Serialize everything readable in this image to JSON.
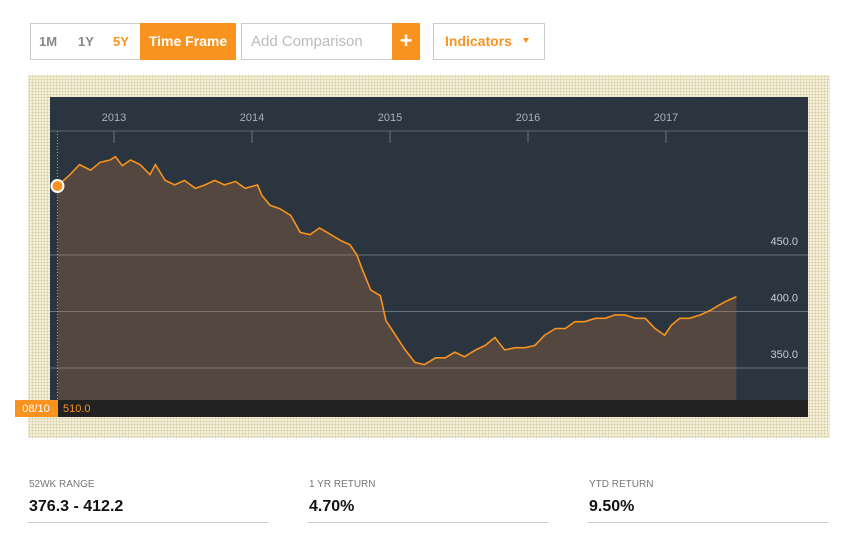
{
  "toolbar": {
    "ranges": [
      "1M",
      "1Y",
      "5Y"
    ],
    "time_frame": "Time Frame",
    "comparison_placeholder": "Add Comparison",
    "add": "+",
    "indicators": "Indicators"
  },
  "chart_data": {
    "type": "line",
    "color": "#f7931e",
    "fill_color": "rgba(190,120,60,0.28)",
    "x": [
      2012.59,
      2012.68,
      2012.75,
      2012.83,
      2012.9,
      2012.97,
      2013.01,
      2013.06,
      2013.12,
      2013.19,
      2013.26,
      2013.3,
      2013.37,
      2013.44,
      2013.51,
      2013.59,
      2013.66,
      2013.73,
      2013.8,
      2013.88,
      2013.95,
      2014.04,
      2014.07,
      2014.13,
      2014.2,
      2014.28,
      2014.35,
      2014.42,
      2014.49,
      2014.57,
      2014.64,
      2014.71,
      2014.76,
      2014.8,
      2014.86,
      2014.93,
      2014.97,
      2015.04,
      2015.11,
      2015.18,
      2015.25,
      2015.33,
      2015.4,
      2015.47,
      2015.54,
      2015.62,
      2015.69,
      2015.76,
      2015.83,
      2015.91,
      2015.98,
      2016.05,
      2016.12,
      2016.2,
      2016.27,
      2016.34,
      2016.41,
      2016.49,
      2016.56,
      2016.63,
      2016.7,
      2016.78,
      2016.85,
      2016.92,
      2016.99,
      2017.04,
      2017.1,
      2017.17,
      2017.25,
      2017.32,
      2017.39,
      2017.45,
      2017.51
    ],
    "values": [
      511,
      521,
      530,
      525,
      532,
      534,
      537,
      529,
      534,
      530,
      521,
      530,
      516,
      512,
      516,
      509,
      512,
      516,
      512,
      515,
      509,
      512,
      503,
      494,
      491,
      485,
      470,
      468,
      474,
      468,
      463,
      459,
      450,
      437,
      419,
      414,
      392,
      379,
      366,
      355,
      353,
      359,
      359,
      364,
      360,
      366,
      370,
      377,
      366,
      368,
      368,
      370,
      379,
      385,
      385,
      391,
      391,
      394,
      394,
      397,
      397,
      394,
      394,
      385,
      379,
      388,
      394,
      394,
      397,
      401,
      406,
      410,
      413
    ],
    "xlim": [
      2012.536,
      2018.029
    ],
    "xticks": [
      2013,
      2014,
      2015,
      2016,
      2017
    ],
    "ylim": [
      321.7,
      559.7
    ],
    "yticks": [
      {
        "value": 350,
        "label": "350.0"
      },
      {
        "value": 400,
        "label": "400.0"
      },
      {
        "value": 450,
        "label": "450.0"
      }
    ],
    "grid": true
  },
  "cursor": {
    "date": "08/10",
    "value": "510.0"
  },
  "stats": [
    {
      "label": "52WK RANGE",
      "value": "376.3 - 412.2"
    },
    {
      "label": "1 YR RETURN",
      "value": "4.70%"
    },
    {
      "label": "YTD RETURN",
      "value": "9.50%"
    }
  ]
}
